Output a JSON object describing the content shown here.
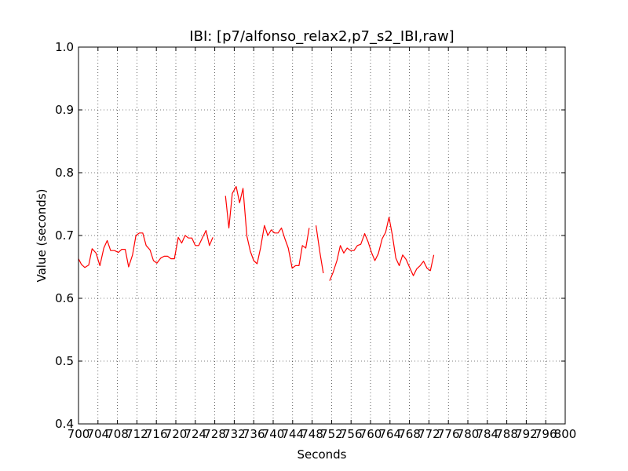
{
  "chart_data": {
    "type": "line",
    "title": "IBI: [p7/alfonso_relax2,p7_s2_IBI,raw]",
    "xlabel": "Seconds",
    "ylabel": "Value (seconds)",
    "xlim": [
      700,
      800
    ],
    "ylim": [
      0.4,
      1.0
    ],
    "x_ticks": [
      700,
      704,
      708,
      712,
      716,
      720,
      724,
      728,
      732,
      736,
      740,
      744,
      748,
      752,
      756,
      760,
      764,
      768,
      772,
      776,
      780,
      784,
      788,
      792,
      796,
      800
    ],
    "x_tick_labels": [
      "700",
      "704",
      "708",
      "712",
      "716",
      "720",
      "724",
      "728",
      "732",
      "736",
      "740",
      "744",
      "748",
      "752",
      "756",
      "760",
      "764",
      "768",
      "772",
      "776",
      "780",
      "784",
      "788",
      "792",
      "796",
      "800"
    ],
    "y_ticks": [
      0.4,
      0.5,
      0.6,
      0.7,
      0.8,
      0.9,
      1.0
    ],
    "y_tick_labels": [
      "0.4",
      "0.5",
      "0.6",
      "0.7",
      "0.8",
      "0.9",
      "1.0"
    ],
    "grid": true,
    "grid_style": "dotted",
    "line_color": "#ff0000",
    "series": [
      {
        "segments": [
          [
            [
              700,
              0.663
            ],
            [
              700.6,
              0.654
            ],
            [
              701.3,
              0.649
            ],
            [
              702.1,
              0.653
            ],
            [
              702.8,
              0.679
            ],
            [
              703.6,
              0.672
            ],
            [
              704.4,
              0.652
            ],
            [
              705.2,
              0.68
            ],
            [
              705.9,
              0.692
            ],
            [
              706.6,
              0.676
            ],
            [
              707.4,
              0.676
            ],
            [
              708.2,
              0.673
            ],
            [
              708.9,
              0.678
            ],
            [
              709.6,
              0.678
            ],
            [
              710.3,
              0.65
            ],
            [
              711.1,
              0.669
            ],
            [
              711.8,
              0.7
            ],
            [
              712.5,
              0.704
            ],
            [
              713.2,
              0.704
            ],
            [
              713.9,
              0.684
            ],
            [
              714.7,
              0.677
            ],
            [
              715.4,
              0.66
            ],
            [
              716.1,
              0.656
            ],
            [
              716.9,
              0.664
            ],
            [
              717.6,
              0.667
            ],
            [
              718.3,
              0.667
            ],
            [
              719.0,
              0.663
            ],
            [
              719.7,
              0.663
            ],
            [
              720.5,
              0.697
            ],
            [
              721.2,
              0.688
            ],
            [
              721.9,
              0.7
            ],
            [
              722.6,
              0.696
            ],
            [
              723.3,
              0.696
            ],
            [
              724.0,
              0.684
            ],
            [
              724.7,
              0.684
            ],
            [
              725.5,
              0.697
            ],
            [
              726.2,
              0.708
            ],
            [
              726.9,
              0.684
            ],
            [
              727.6,
              0.697
            ]
          ],
          [
            [
              730.2,
              0.763
            ],
            [
              730.9,
              0.712
            ],
            [
              731.6,
              0.767
            ],
            [
              732.4,
              0.778
            ],
            [
              733.1,
              0.752
            ],
            [
              733.8,
              0.775
            ],
            [
              734.6,
              0.699
            ],
            [
              735.3,
              0.675
            ],
            [
              736.0,
              0.66
            ],
            [
              736.7,
              0.655
            ],
            [
              737.4,
              0.68
            ],
            [
              738.2,
              0.716
            ],
            [
              738.9,
              0.7
            ],
            [
              739.6,
              0.709
            ],
            [
              740.3,
              0.704
            ],
            [
              741.0,
              0.704
            ],
            [
              741.7,
              0.712
            ],
            [
              742.4,
              0.695
            ],
            [
              743.1,
              0.68
            ],
            [
              743.9,
              0.648
            ],
            [
              744.6,
              0.652
            ],
            [
              745.3,
              0.652
            ],
            [
              746.0,
              0.684
            ],
            [
              746.7,
              0.68
            ],
            [
              747.4,
              0.712
            ]
          ],
          [
            [
              748.8,
              0.716
            ],
            [
              749.6,
              0.673
            ],
            [
              750.3,
              0.64
            ]
          ],
          [
            [
              751.6,
              0.628
            ],
            [
              752.3,
              0.641
            ],
            [
              753.1,
              0.66
            ],
            [
              753.8,
              0.684
            ],
            [
              754.5,
              0.672
            ],
            [
              755.2,
              0.68
            ],
            [
              755.9,
              0.676
            ],
            [
              756.6,
              0.676
            ],
            [
              757.3,
              0.684
            ],
            [
              758.0,
              0.686
            ],
            [
              758.8,
              0.703
            ],
            [
              759.5,
              0.69
            ],
            [
              760.2,
              0.673
            ],
            [
              760.9,
              0.66
            ],
            [
              761.6,
              0.671
            ],
            [
              762.4,
              0.695
            ],
            [
              763.1,
              0.705
            ],
            [
              763.8,
              0.729
            ],
            [
              764.5,
              0.7
            ],
            [
              765.2,
              0.664
            ],
            [
              765.9,
              0.652
            ],
            [
              766.6,
              0.669
            ],
            [
              767.3,
              0.662
            ],
            [
              768.1,
              0.648
            ],
            [
              768.8,
              0.636
            ],
            [
              769.5,
              0.647
            ],
            [
              770.2,
              0.652
            ],
            [
              770.9,
              0.659
            ],
            [
              771.6,
              0.648
            ],
            [
              772.3,
              0.644
            ],
            [
              773.0,
              0.669
            ]
          ]
        ]
      }
    ]
  }
}
